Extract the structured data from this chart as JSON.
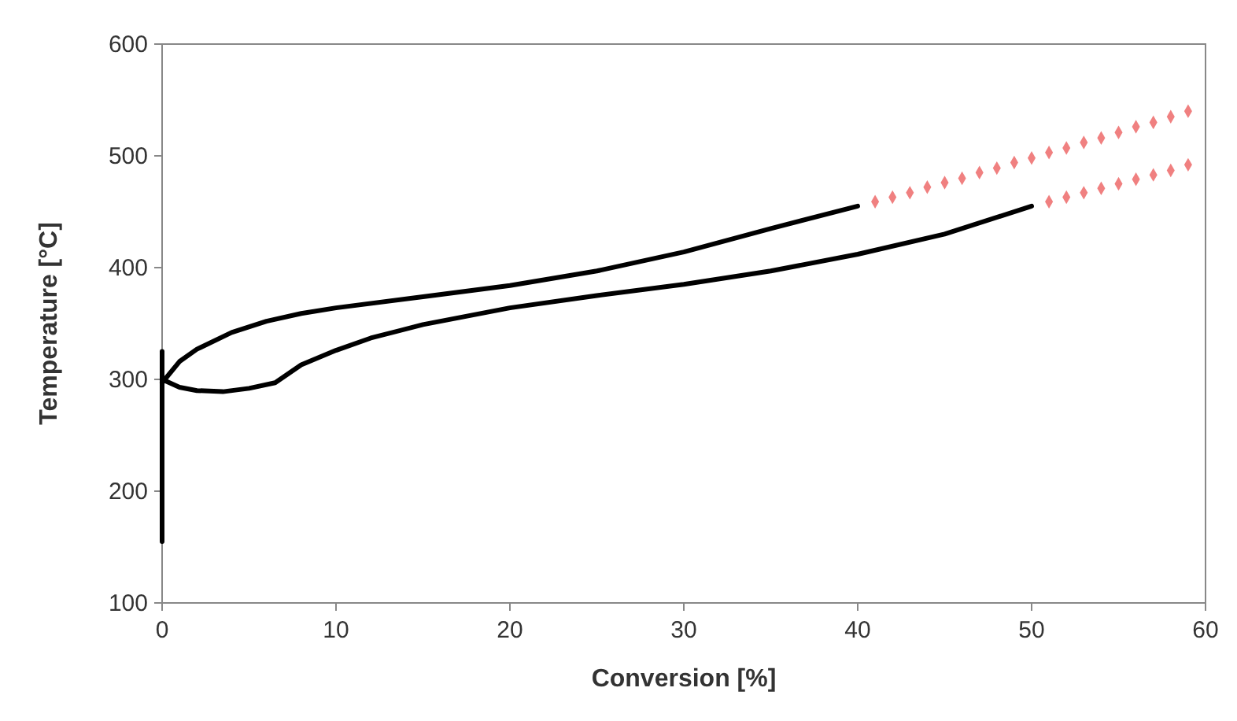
{
  "chart_data": {
    "type": "line",
    "xlabel": "Conversion [%]",
    "ylabel": "Temperature [°C]",
    "xlim": [
      0,
      60
    ],
    "ylim": [
      100,
      600
    ],
    "xticks": [
      0,
      10,
      20,
      30,
      40,
      50,
      60
    ],
    "yticks": [
      100,
      200,
      300,
      400,
      500,
      600
    ],
    "grid": false,
    "line_style": "solid",
    "series": [
      {
        "color": "#000000",
        "x": [
          0,
          0
        ],
        "values": [
          155,
          325
        ]
      },
      {
        "color": "#000000",
        "x": [
          0,
          1,
          2,
          4,
          6,
          8,
          10,
          15,
          20,
          25,
          30,
          35,
          40
        ],
        "values": [
          297,
          316,
          327,
          342,
          352,
          359,
          364,
          374,
          384,
          397,
          414,
          435,
          455
        ]
      },
      {
        "color": "#000000",
        "x": [
          0,
          1,
          2,
          3.5,
          5,
          6.5,
          8,
          10,
          12,
          15,
          20,
          25,
          30,
          35,
          40,
          45,
          50
        ],
        "values": [
          300,
          293,
          290,
          289,
          292,
          297,
          313,
          326,
          337,
          349,
          364,
          375,
          385,
          397,
          412,
          430,
          455
        ]
      },
      {
        "type": "scatter",
        "marker": "diamond",
        "color": "#f08080",
        "x": [
          41,
          42,
          43,
          44,
          45,
          46,
          47,
          48,
          49,
          50,
          51,
          52,
          53,
          54,
          55,
          56,
          57,
          58,
          59
        ],
        "values": [
          459,
          463,
          467,
          472,
          476,
          480,
          485,
          489,
          494,
          498,
          503,
          507,
          512,
          516,
          521,
          526,
          530,
          535,
          540
        ]
      },
      {
        "type": "scatter",
        "marker": "diamond",
        "color": "#f08080",
        "x": [
          51,
          52,
          53,
          54,
          55,
          56,
          57,
          58,
          59
        ],
        "values": [
          459,
          463,
          467,
          471,
          475,
          479,
          483,
          487,
          492
        ]
      }
    ]
  }
}
